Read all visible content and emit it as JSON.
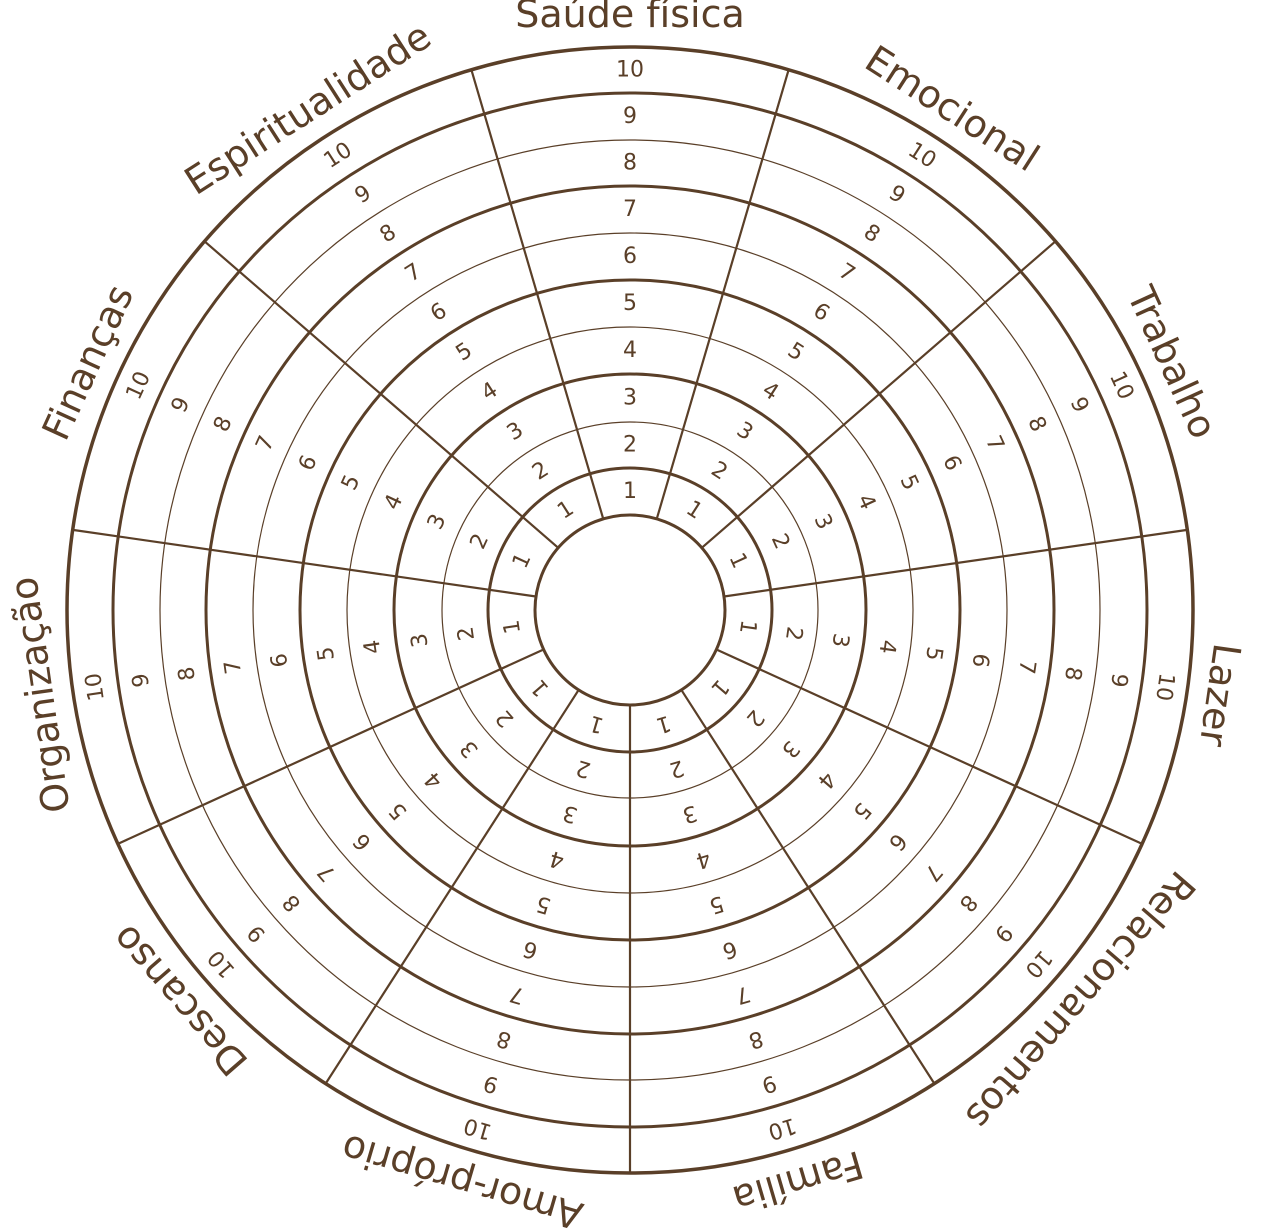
{
  "wheel": {
    "areas": [
      "Saúde física",
      "Emocional",
      "Trabalho",
      "Lazer",
      "Relacionamentos",
      "Família",
      "Amor-próprio",
      "Descanso",
      "Organização",
      "Espiritualidade"
    ],
    "extra_area": "Finanças",
    "levels": [
      "1",
      "2",
      "3",
      "4",
      "5",
      "6",
      "7",
      "8",
      "9",
      "10"
    ],
    "line_color": "#5a3f28"
  }
}
